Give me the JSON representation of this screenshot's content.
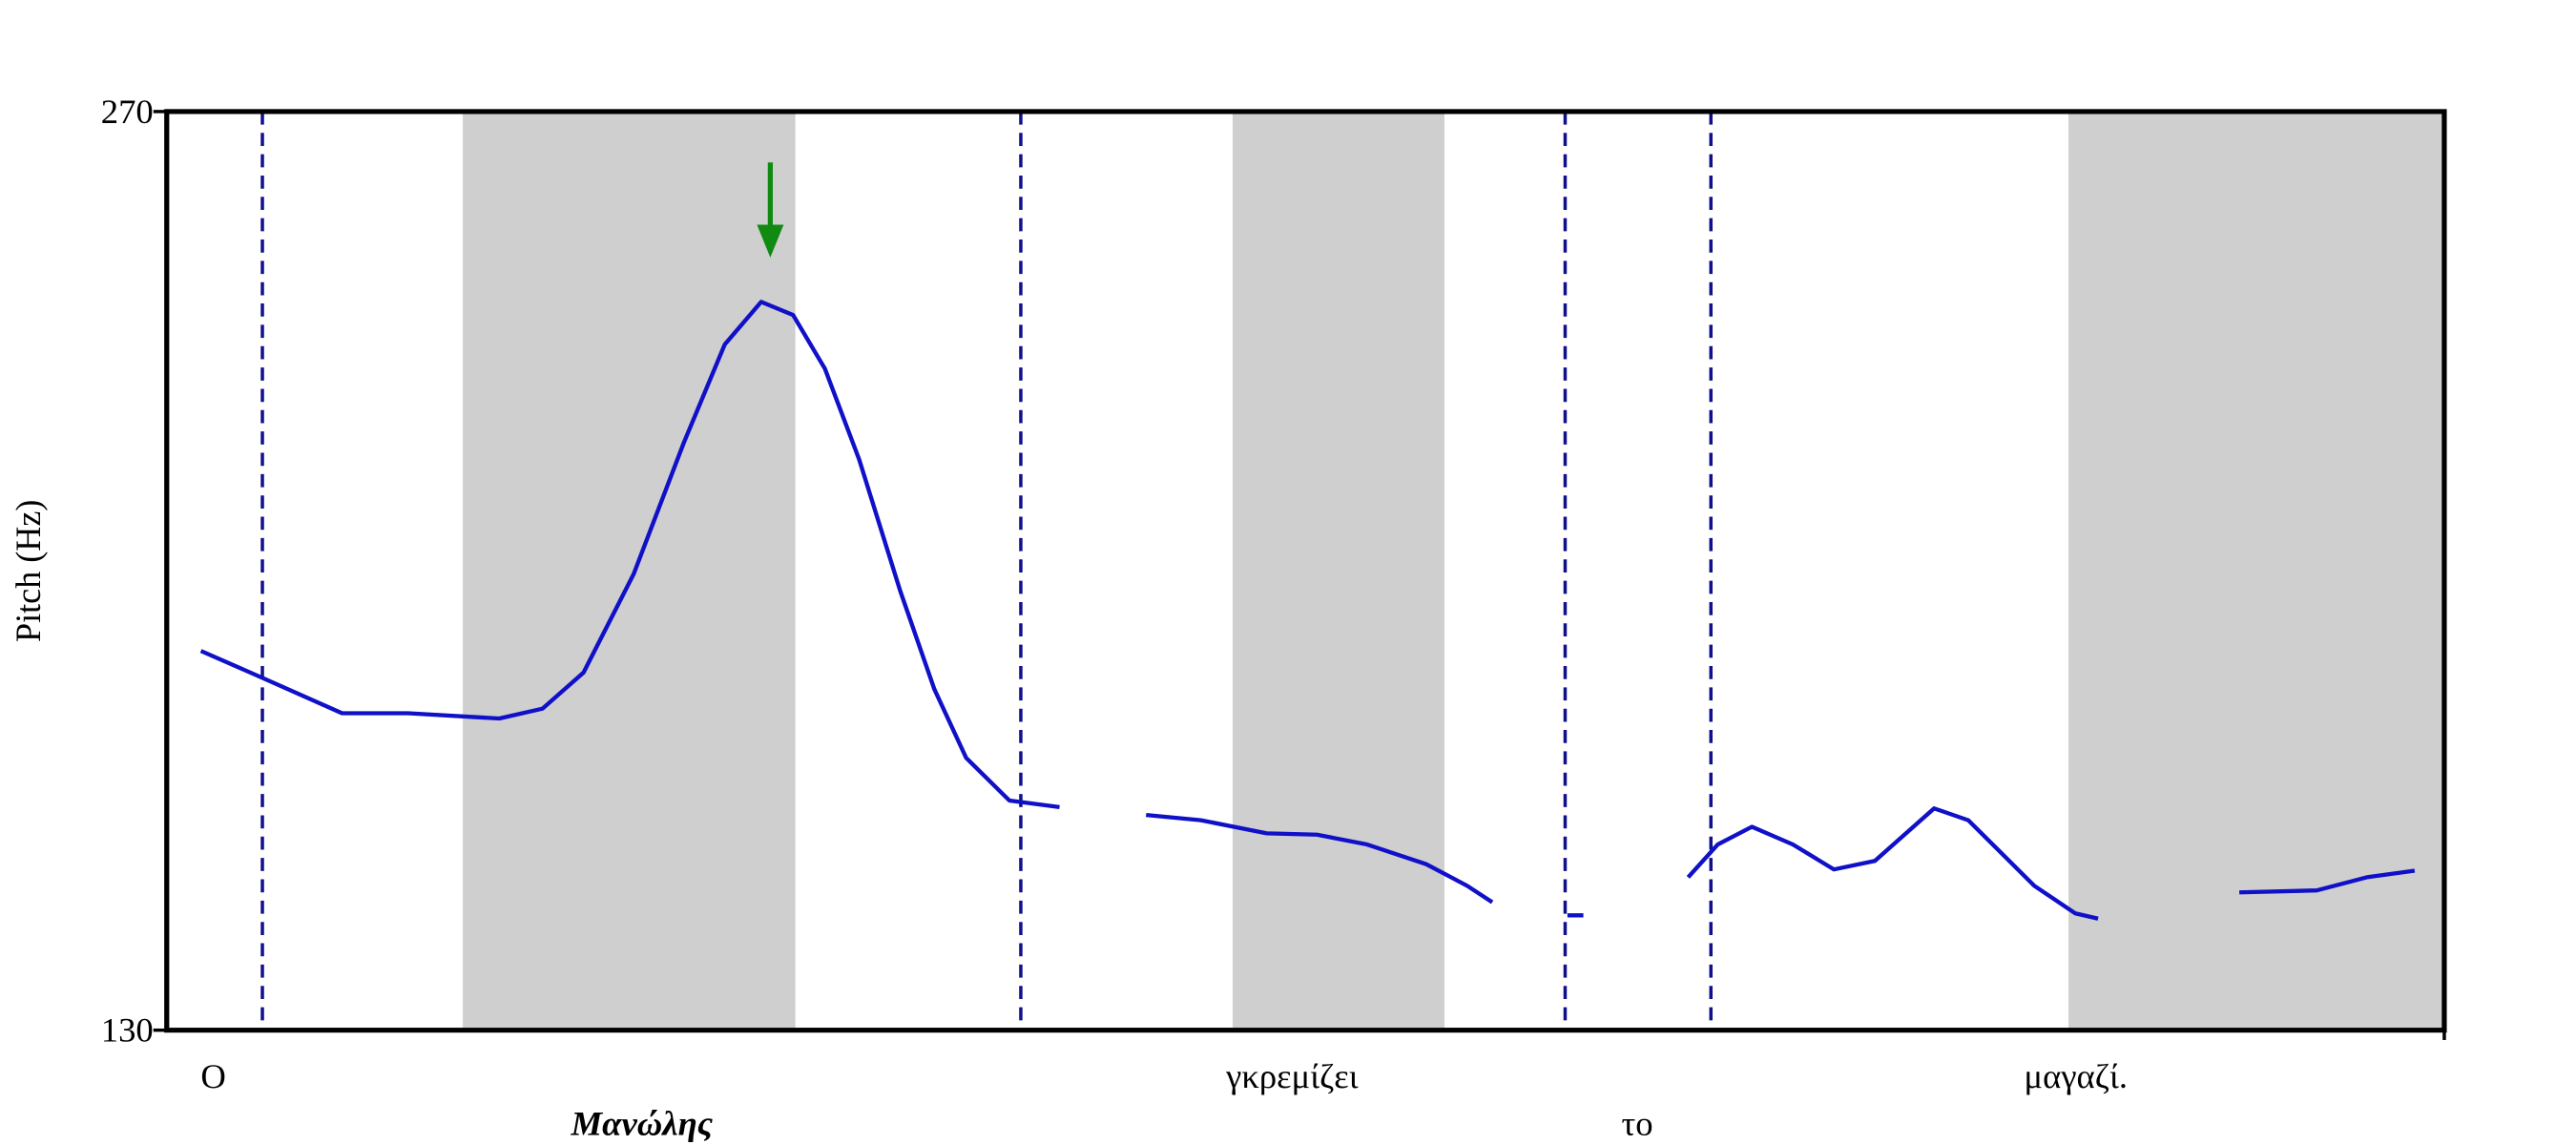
{
  "chart_data": {
    "type": "line",
    "y_label": "Pitch (Hz)",
    "ylim": [
      130,
      270
    ],
    "yticks": [
      130,
      270
    ],
    "xlim": [
      0,
      100
    ],
    "series": [
      {
        "color": "#1010c8",
        "x": [
          1.5,
          4.0,
          7.7,
          10.6,
          14.6,
          16.5,
          18.3,
          20.5,
          22.7,
          24.5,
          26.1,
          27.5,
          28.9,
          30.4,
          32.2,
          33.7,
          35.1,
          37.0,
          39.2,
          null,
          43.0,
          45.4,
          48.3,
          50.5,
          52.7,
          55.3,
          57.1,
          58.2,
          null,
          61.5,
          62.2,
          null,
          66.8,
          68.1,
          69.6,
          71.4,
          73.2,
          75.0,
          77.6,
          79.1,
          82.0,
          83.8,
          84.8,
          null,
          91.0,
          94.4,
          96.6,
          98.7
        ],
        "values": [
          187.8,
          184.0,
          178.3,
          178.3,
          177.5,
          179.0,
          184.5,
          199.5,
          219.5,
          234.5,
          241.0,
          239.0,
          230.8,
          217.0,
          197.0,
          182.0,
          171.5,
          165.0,
          164.0,
          null,
          162.8,
          162.0,
          160.0,
          159.8,
          158.3,
          155.3,
          152.0,
          149.5,
          null,
          147.5,
          147.5,
          null,
          153.3,
          158.3,
          161.0,
          158.3,
          154.5,
          155.8,
          163.8,
          162.0,
          152.0,
          147.8,
          147.0,
          null,
          151.0,
          151.3,
          153.3,
          154.3
        ]
      }
    ],
    "boundaries": [
      4.2,
      37.5,
      61.4,
      67.8
    ],
    "shaded_regions": [
      [
        13.0,
        27.6
      ],
      [
        46.8,
        56.1
      ],
      [
        83.5,
        100
      ]
    ],
    "words": [
      "Ο",
      "Μανώλης",
      "γκρεμίζει",
      "το",
      "μαγαζί."
    ]
  }
}
